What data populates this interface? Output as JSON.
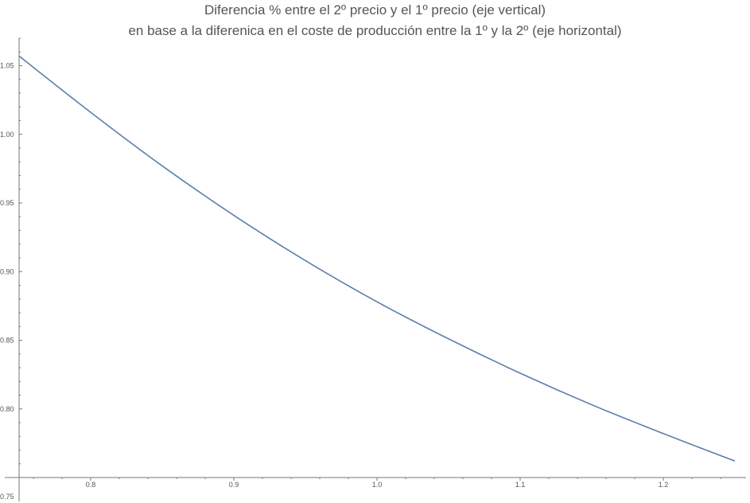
{
  "chart_data": {
    "type": "line",
    "title": "Diferencia % entre el 2º precio y el 1º precio (eje vertical)",
    "subtitle": "en base a la diferenica en el coste de producción entre la 1º y la 2º (eje horizontal)",
    "xlabel": "",
    "ylabel": "",
    "xlim": [
      0.75,
      1.25
    ],
    "ylim": [
      0.75,
      1.07
    ],
    "grid": false,
    "x_ticks": [
      "0.8",
      "0.9",
      "1.0",
      "1.1",
      "1.2"
    ],
    "y_ticks": [
      "0.75",
      "0.80",
      "0.85",
      "0.90",
      "0.95",
      "1.00",
      "1.05"
    ],
    "series": [
      {
        "name": "",
        "color": "#5b7fad",
        "x": [
          0.75,
          0.8,
          0.85,
          0.9,
          0.95,
          1.0,
          1.05,
          1.1,
          1.15,
          1.2,
          1.25
        ],
        "y": [
          1.057,
          1.016,
          0.977,
          0.941,
          0.908,
          0.878,
          0.851,
          0.826,
          0.803,
          0.782,
          0.762
        ]
      }
    ]
  }
}
